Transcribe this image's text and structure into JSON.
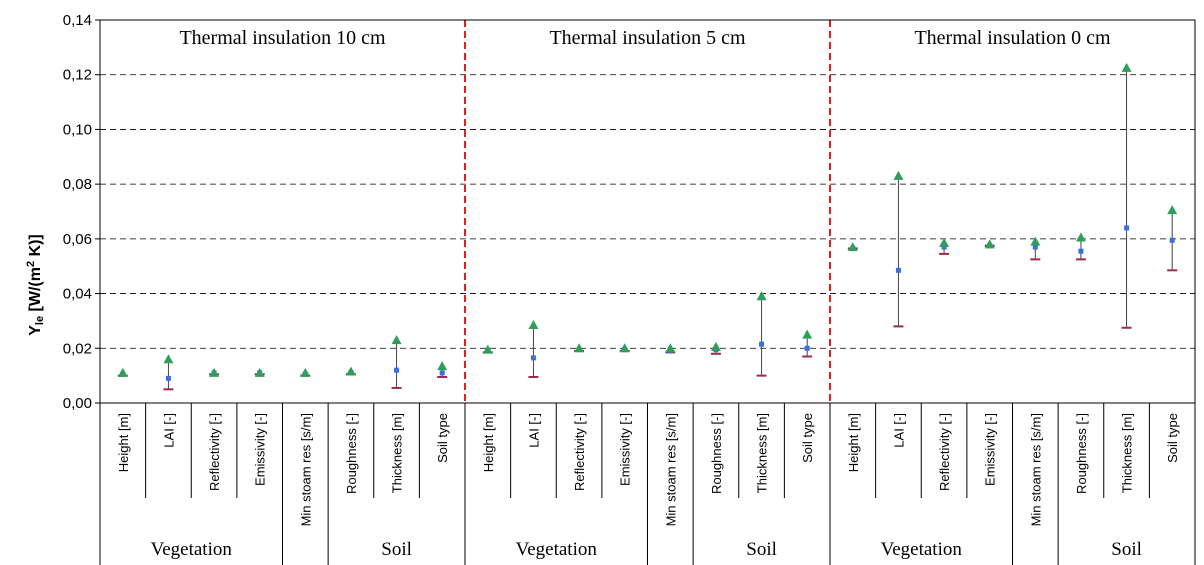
{
  "chart_data": {
    "type": "scatter",
    "ylabel": {
      "main": "Y",
      "sub": "le",
      "rest1": " [W/(m",
      "sup": "2",
      "rest2": " K)]"
    },
    "ylim": [
      0,
      0.14
    ],
    "y_ticks": [
      "0,00",
      "0,02",
      "0,04",
      "0,06",
      "0,08",
      "0,10",
      "0,12",
      "0,14"
    ],
    "grid": "horizontal dashed",
    "categories": [
      "Height [m]",
      "LAI [-]",
      "Reflectivity [-]",
      "Emissivity [-]",
      "Min stoam res [s/m]",
      "Roughness [-]",
      "Thickness [m]",
      "Soil type"
    ],
    "colors": {
      "max": "#2e9f5a",
      "mean": "#3a6fe0",
      "min": "#9b2d4a",
      "separator": "#e0201b"
    },
    "panels": [
      {
        "title": "Thermal insulation 10 cm",
        "groups": [
          {
            "label": "Vegetation",
            "span": 4
          },
          {
            "label": "",
            "span": 1
          },
          {
            "label": "Soil",
            "span": 3
          }
        ],
        "max": [
          0.011,
          0.016,
          0.011,
          0.011,
          0.011,
          0.0115,
          0.023,
          0.0135
        ],
        "mean": [
          0.0105,
          0.009,
          0.011,
          0.011,
          0.0105,
          0.011,
          0.012,
          0.011
        ],
        "min": [
          0.01,
          0.005,
          0.0105,
          0.0105,
          0.01,
          0.0105,
          0.0055,
          0.0095
        ]
      },
      {
        "title": "Thermal insulation 5 cm",
        "groups": [
          {
            "label": "Vegetation",
            "span": 4
          },
          {
            "label": "",
            "span": 1
          },
          {
            "label": "Soil",
            "span": 3
          }
        ],
        "max": [
          0.0195,
          0.0285,
          0.02,
          0.02,
          0.02,
          0.0205,
          0.039,
          0.025
        ],
        "mean": [
          0.019,
          0.0165,
          0.0195,
          0.0195,
          0.019,
          0.0195,
          0.0215,
          0.02
        ],
        "min": [
          0.0185,
          0.0095,
          0.019,
          0.019,
          0.0185,
          0.018,
          0.01,
          0.017
        ]
      },
      {
        "title": "Thermal insulation 0 cm",
        "groups": [
          {
            "label": "Vegetation",
            "span": 4
          },
          {
            "label": "",
            "span": 1
          },
          {
            "label": "Soil",
            "span": 3
          }
        ],
        "max": [
          0.057,
          0.083,
          0.0585,
          0.058,
          0.059,
          0.0605,
          0.1225,
          0.0705
        ],
        "mean": [
          0.0565,
          0.0485,
          0.057,
          0.0575,
          0.057,
          0.0555,
          0.064,
          0.0595
        ],
        "min": [
          0.0565,
          0.028,
          0.0545,
          0.0575,
          0.0525,
          0.0525,
          0.0275,
          0.0485
        ]
      }
    ]
  }
}
